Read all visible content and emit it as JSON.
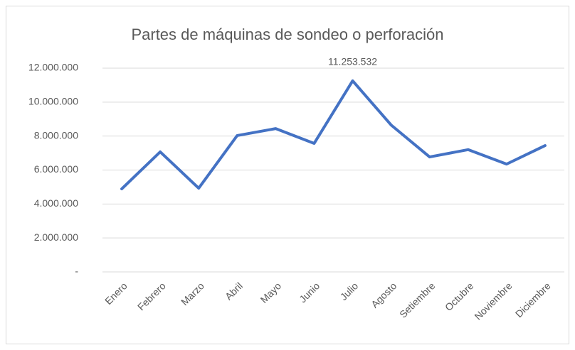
{
  "chart_data": {
    "type": "line",
    "title": "Partes de máquinas de sondeo o perforación",
    "categories": [
      "Enero",
      "Febrero",
      "Marzo",
      "Abril",
      "Mayo",
      "Junio",
      "Julio",
      "Agosto",
      "Setiembre",
      "Octubre",
      "Noviembre",
      "Diciembre"
    ],
    "series": [
      {
        "name": "Partes de máquinas de sondeo o perforación",
        "color": "#4472c4",
        "values": [
          4890000,
          7070000,
          4930000,
          8030000,
          8440000,
          7570000,
          11253532,
          8650000,
          6770000,
          7200000,
          6350000,
          7440000
        ],
        "value_labels": [
          null,
          null,
          null,
          null,
          null,
          null,
          "11.253.532",
          null,
          null,
          null,
          null,
          null
        ]
      }
    ],
    "ylim": [
      0,
      12000000
    ],
    "yticks": [
      {
        "value": 0,
        "label": "-"
      },
      {
        "value": 2000000,
        "label": "2.000.000"
      },
      {
        "value": 4000000,
        "label": "4.000.000"
      },
      {
        "value": 6000000,
        "label": "6.000.000"
      },
      {
        "value": 8000000,
        "label": "8.000.000"
      },
      {
        "value": 10000000,
        "label": "10.000.000"
      },
      {
        "value": 12000000,
        "label": "12.000.000"
      }
    ],
    "grid": true
  }
}
